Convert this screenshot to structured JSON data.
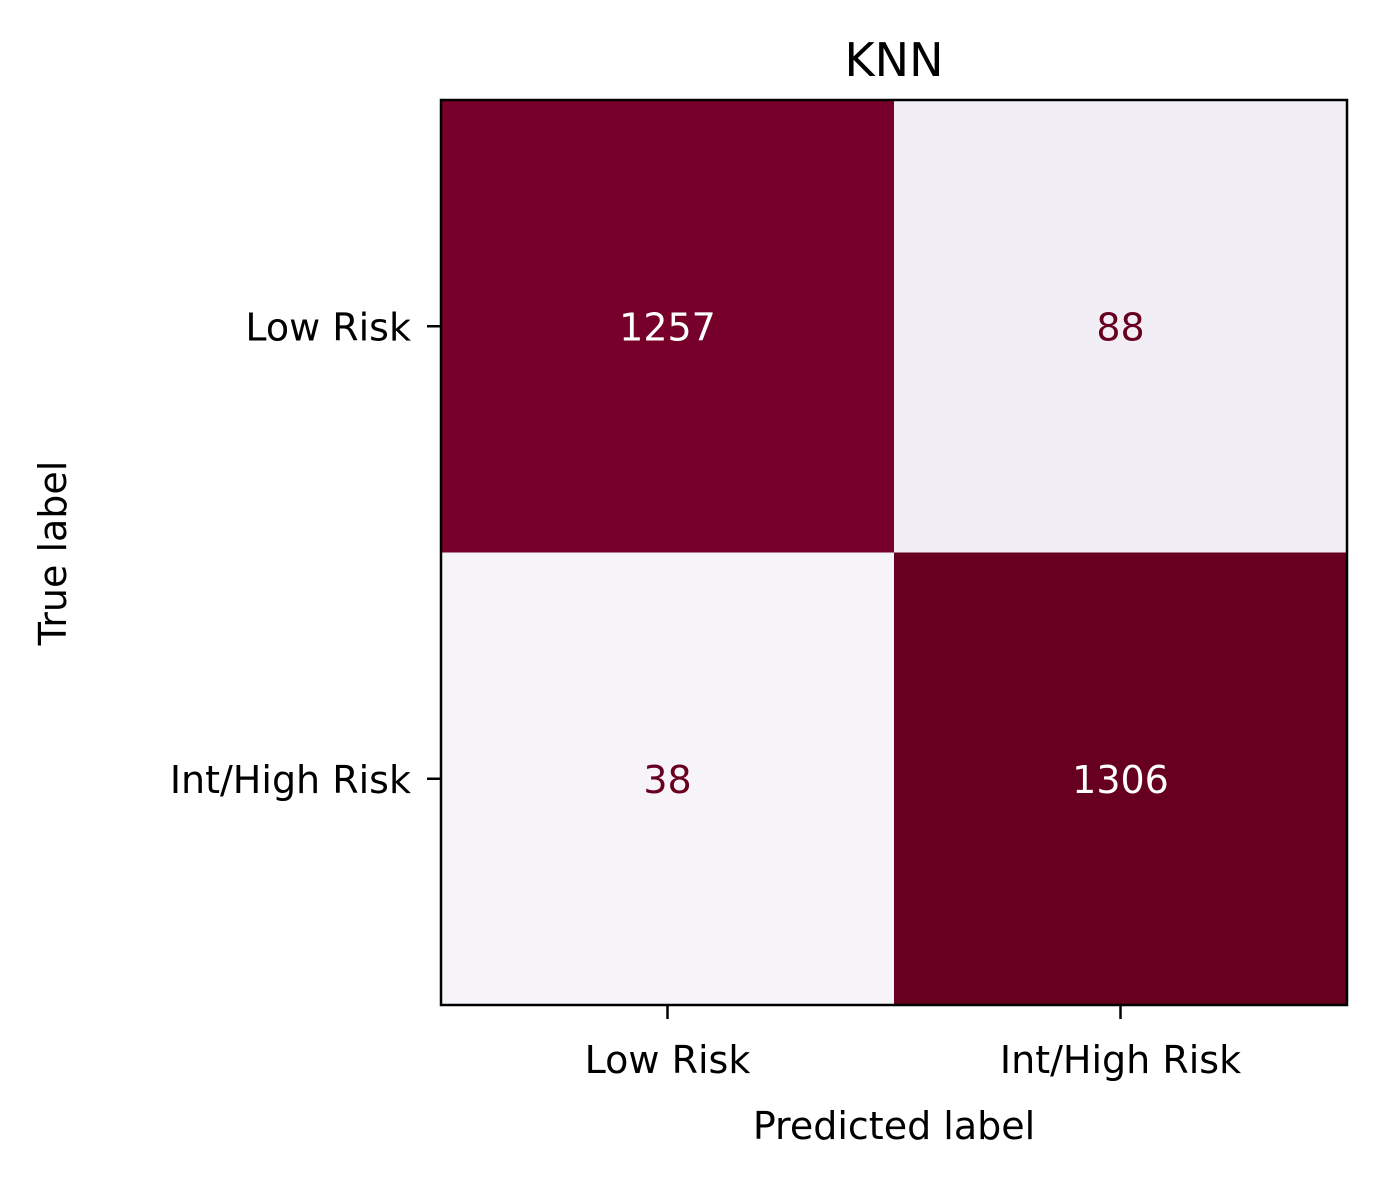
{
  "chart_data": {
    "type": "heatmap",
    "title": "KNN",
    "xlabel": "Predicted label",
    "ylabel": "True label",
    "x_categories": [
      "Low Risk",
      "Int/High Risk"
    ],
    "y_categories": [
      "Low Risk",
      "Int/High Risk"
    ],
    "matrix": [
      [
        1257,
        88
      ],
      [
        38,
        1306
      ]
    ],
    "value_range": [
      38,
      1306
    ],
    "colormap": "PuRd",
    "colors": {
      "high": "#67001f",
      "low": "#f7f4f9",
      "dark_text": "#ffffff",
      "light_text": "#67001f",
      "axis": "#000000"
    },
    "grid": false,
    "colorbar": false
  }
}
